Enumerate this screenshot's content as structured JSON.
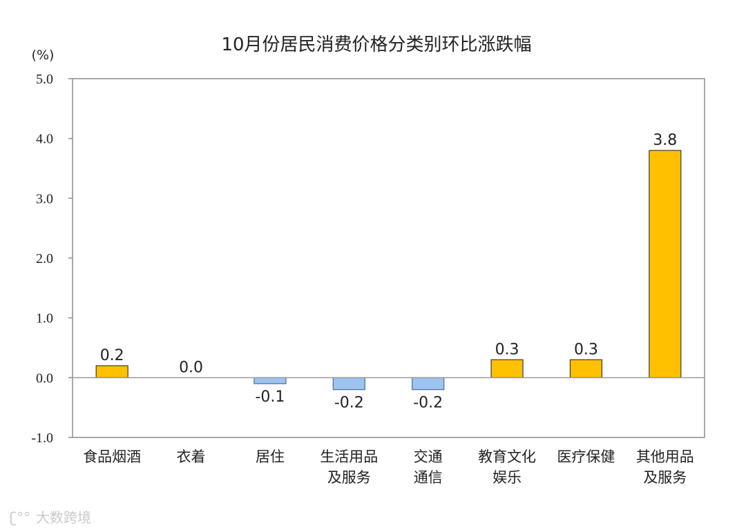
{
  "chart_data": {
    "type": "bar",
    "title": "10月份居民消费价格分类别环比涨跌幅",
    "unit": "(%)",
    "categories": [
      [
        "食品烟酒"
      ],
      [
        "衣着"
      ],
      [
        "居住"
      ],
      [
        "生活用品",
        "及服务"
      ],
      [
        "交通",
        "通信"
      ],
      [
        "教育文化",
        "娱乐"
      ],
      [
        "医疗保健"
      ],
      [
        "其他用品",
        "及服务"
      ]
    ],
    "values": [
      0.2,
      0.0,
      -0.1,
      -0.2,
      -0.2,
      0.3,
      0.3,
      3.8
    ],
    "value_labels": [
      "0.2",
      "0.0",
      "-0.1",
      "-0.2",
      "-0.2",
      "0.3",
      "0.3",
      "3.8"
    ],
    "ylim": [
      -1.0,
      5.0
    ],
    "yticks": [
      5.0,
      4.0,
      3.0,
      2.0,
      1.0,
      0.0,
      -1.0
    ],
    "ytick_labels": [
      "5.0",
      "4.0",
      "3.0",
      "2.0",
      "1.0",
      "0.0",
      "-1.0"
    ],
    "grid": false,
    "colors": {
      "positive": "#FFC000",
      "negative": "#9DC3F1",
      "positive_stroke": "#3a3a3a",
      "negative_stroke": "#4a6a9a"
    }
  },
  "watermark": "大数跨境"
}
